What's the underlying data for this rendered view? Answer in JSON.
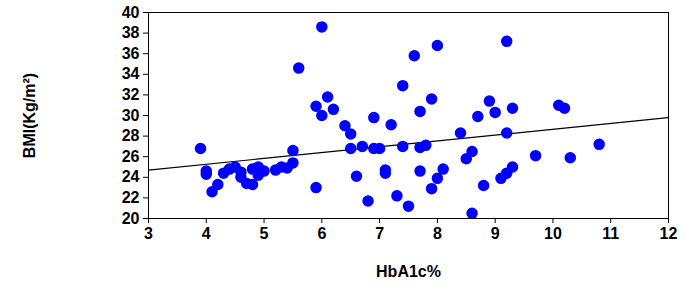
{
  "chart_data": {
    "type": "scatter",
    "x_label": "HbA1c%",
    "y_label": "BMI(Kg/m²)",
    "xlim": [
      3,
      12
    ],
    "xticks": [
      3,
      4,
      5,
      6,
      7,
      8,
      9,
      10,
      11,
      12
    ],
    "ylim": [
      20,
      40
    ],
    "yticks": [
      20,
      22,
      24,
      26,
      28,
      30,
      32,
      34,
      36,
      38,
      40
    ],
    "color": "#0000ff",
    "x": [
      3.9,
      4.0,
      4.0,
      4.1,
      4.2,
      4.3,
      4.4,
      4.5,
      4.6,
      4.6,
      4.7,
      4.8,
      4.8,
      4.9,
      4.9,
      5.0,
      5.2,
      5.3,
      5.4,
      5.5,
      5.5,
      5.6,
      5.9,
      5.9,
      6.0,
      6.0,
      6.1,
      6.2,
      6.4,
      6.5,
      6.5,
      6.6,
      6.7,
      6.8,
      6.9,
      6.9,
      7.0,
      7.1,
      7.1,
      7.2,
      7.3,
      7.4,
      7.4,
      7.5,
      7.6,
      7.7,
      7.7,
      7.7,
      7.8,
      7.9,
      7.9,
      8.0,
      8.0,
      8.1,
      8.4,
      8.5,
      8.6,
      8.6,
      8.7,
      8.8,
      8.9,
      9.0,
      9.1,
      9.2,
      9.2,
      9.2,
      9.3,
      9.3,
      9.7,
      10.1,
      10.2,
      10.3,
      10.8
    ],
    "values": [
      26.8,
      24.6,
      24.3,
      22.6,
      23.3,
      24.4,
      24.8,
      25.0,
      24.5,
      24.0,
      23.4,
      24.8,
      23.3,
      24.2,
      25.0,
      24.6,
      24.7,
      25.0,
      24.9,
      25.4,
      26.6,
      34.6,
      30.9,
      23.0,
      38.6,
      30.0,
      31.8,
      30.6,
      29.0,
      28.2,
      26.8,
      24.1,
      27.0,
      21.7,
      29.8,
      26.8,
      26.8,
      24.7,
      24.4,
      29.1,
      22.2,
      27.0,
      32.9,
      21.2,
      35.8,
      30.4,
      24.6,
      26.9,
      27.1,
      31.6,
      22.9,
      36.8,
      23.9,
      24.8,
      28.3,
      25.8,
      20.5,
      26.5,
      29.9,
      23.2,
      31.4,
      30.3,
      23.9,
      37.2,
      28.3,
      24.4,
      30.7,
      25.0,
      26.1,
      31.0,
      30.7,
      25.9,
      27.2
    ],
    "trend_line": {
      "x": [
        3,
        12
      ],
      "values": [
        24.7,
        29.8
      ]
    }
  }
}
